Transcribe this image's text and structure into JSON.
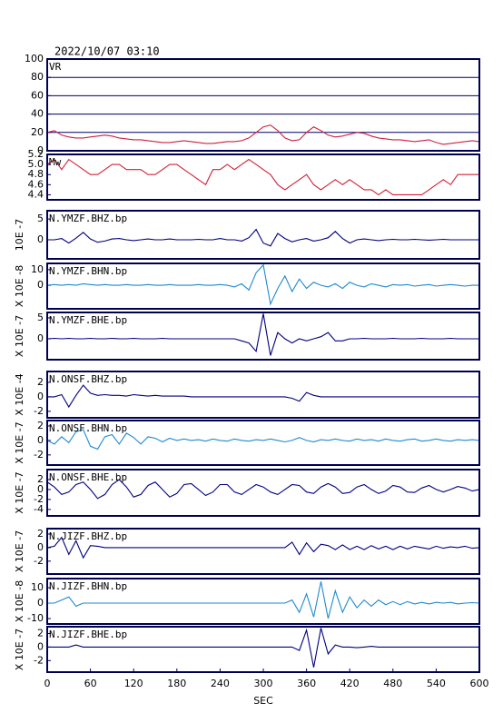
{
  "chart_data": {
    "type": "line",
    "date": "2022/10/07 03:10",
    "xlabel": "SEC",
    "xlim": [
      0,
      600
    ],
    "xticks": [
      0,
      60,
      120,
      180,
      240,
      300,
      360,
      420,
      480,
      540,
      600
    ],
    "x": [
      0,
      10,
      20,
      30,
      40,
      50,
      60,
      70,
      80,
      90,
      100,
      110,
      120,
      130,
      140,
      150,
      160,
      170,
      180,
      190,
      200,
      210,
      220,
      230,
      240,
      250,
      260,
      270,
      280,
      290,
      300,
      310,
      320,
      330,
      340,
      350,
      360,
      370,
      380,
      390,
      400,
      410,
      420,
      430,
      440,
      450,
      460,
      470,
      480,
      490,
      500,
      510,
      520,
      530,
      540,
      550,
      560,
      570,
      580,
      590,
      600
    ],
    "panels": [
      {
        "name": "VR",
        "color": "#d0203a",
        "grid": true,
        "ylim": [
          0,
          100
        ],
        "yticks": [
          0,
          20,
          40,
          60,
          80,
          100
        ],
        "values": [
          20,
          22,
          17,
          15,
          14,
          14,
          15,
          16,
          17,
          16,
          14,
          13,
          12,
          12,
          11,
          10,
          9,
          9,
          10,
          11,
          10,
          9,
          8,
          8,
          9,
          10,
          10,
          11,
          14,
          20,
          26,
          28,
          22,
          14,
          11,
          12,
          20,
          26,
          22,
          17,
          15,
          16,
          18,
          20,
          19,
          16,
          14,
          13,
          12,
          12,
          11,
          10,
          11,
          12,
          9,
          7,
          8,
          9,
          10,
          11,
          10
        ]
      },
      {
        "name": "Mw",
        "color": "#d0203a",
        "ylim": [
          4.3,
          5.2
        ],
        "yticks": [
          4.4,
          4.6,
          4.8,
          {
            "value": 5,
            "label": "5.0"
          },
          5.2
        ],
        "values": [
          5.0,
          5.1,
          4.9,
          5.1,
          5.0,
          4.9,
          4.8,
          4.8,
          4.9,
          5.0,
          5.0,
          4.9,
          4.9,
          4.9,
          4.8,
          4.8,
          4.9,
          5.0,
          5.0,
          4.9,
          4.8,
          4.7,
          4.6,
          4.9,
          4.9,
          5.0,
          4.9,
          5.0,
          5.1,
          5.0,
          4.9,
          4.8,
          4.6,
          4.5,
          4.6,
          4.7,
          4.8,
          4.6,
          4.5,
          4.6,
          4.7,
          4.6,
          4.7,
          4.6,
          4.5,
          4.5,
          4.4,
          4.5,
          4.4,
          4.4,
          4.4,
          4.4,
          4.4,
          4.5,
          4.6,
          4.7,
          4.6,
          4.8,
          4.8,
          4.8,
          4.8
        ]
      },
      {
        "name": "N.YMZF.BHZ.bp",
        "unit": "10E -7",
        "color": "#000080",
        "ylim": [
          -4.6,
          7
        ],
        "yticks": [
          0,
          5
        ],
        "values": [
          0,
          0,
          0.3,
          -0.8,
          0.4,
          1.8,
          0.2,
          -0.6,
          -0.3,
          0.2,
          0.3,
          0,
          -0.2,
          0,
          0.2,
          0,
          0,
          0.2,
          0,
          0,
          0,
          0.1,
          0,
          0,
          0.3,
          0,
          0,
          -0.3,
          0.5,
          2.5,
          -0.8,
          -1.5,
          1.5,
          0.3,
          -0.5,
          0,
          0.3,
          -0.3,
          0,
          0.5,
          2,
          0.3,
          -0.8,
          0,
          0.2,
          0,
          -0.2,
          0,
          0.1,
          0,
          0,
          0.1,
          0,
          -0.1,
          0,
          0.1,
          0,
          0,
          0,
          0,
          0
        ]
      },
      {
        "name": "N.YMZF.BHN.bp",
        "unit": "X 10E -8",
        "color": "#1e8ad0",
        "ylim": [
          -15,
          14
        ],
        "yticks": [
          0,
          10
        ],
        "values": [
          0,
          0.5,
          0,
          0.5,
          0,
          1,
          0.5,
          0,
          0.5,
          0,
          0,
          0.5,
          0,
          0,
          0.5,
          0,
          0,
          0.5,
          0,
          0,
          0,
          0.5,
          0,
          0,
          0.5,
          0,
          -1,
          1,
          -3,
          8,
          13,
          -12,
          -2,
          6,
          -4,
          4,
          -2,
          2,
          0,
          -1,
          1,
          -2,
          2,
          0,
          -1,
          1,
          0,
          -1,
          0.5,
          0,
          0.5,
          -0.5,
          0,
          0.5,
          -0.5,
          0,
          0.5,
          0,
          -0.5,
          0,
          0
        ]
      },
      {
        "name": "N.YMZF.BHE.bp",
        "unit": "X 10E -7",
        "color": "#000080",
        "ylim": [
          -5,
          6.3
        ],
        "yticks": [
          0,
          5
        ],
        "values": [
          0,
          0.1,
          0,
          0.1,
          0,
          0,
          0.1,
          0,
          0,
          0.1,
          0,
          0,
          0.1,
          0,
          0,
          0,
          0.1,
          0,
          0,
          0,
          0,
          0,
          0,
          0,
          0,
          0,
          0,
          -0.5,
          -1,
          -3,
          6,
          -4,
          1.5,
          0,
          -1,
          0,
          -0.5,
          0,
          0.5,
          1.5,
          -0.5,
          -0.5,
          0,
          0,
          0.1,
          0,
          0,
          0,
          0.1,
          0,
          0,
          0,
          0.1,
          0,
          0,
          0,
          0.1,
          0,
          0,
          0,
          0
        ]
      },
      {
        "name": "N.ONSF.BHZ.bp",
        "unit": "X 10E -4",
        "color": "#000080",
        "ylim": [
          -2.9,
          3.5
        ],
        "yticks": [
          -2,
          0,
          2
        ],
        "values": [
          0,
          0,
          0.3,
          -1.4,
          0.2,
          1.6,
          0.5,
          0.2,
          0.3,
          0.2,
          0.2,
          0.1,
          0.3,
          0.2,
          0.1,
          0.2,
          0.1,
          0.1,
          0.1,
          0.1,
          0,
          0,
          0,
          0,
          0,
          0,
          0,
          0,
          0,
          0,
          0,
          0,
          0,
          0,
          -0.2,
          -0.6,
          0.6,
          0.2,
          0,
          0,
          0,
          0,
          0,
          0,
          0,
          0,
          0,
          0,
          0,
          0,
          0,
          0,
          0,
          0,
          0,
          0,
          0,
          0,
          0,
          0,
          0
        ]
      },
      {
        "name": "N.ONSF.BHN.bp",
        "unit": "X 10E -7",
        "color": "#1e8ad0",
        "ylim": [
          -3.4,
          2.75
        ],
        "yticks": [
          -2,
          0,
          2
        ],
        "values": [
          0,
          -0.5,
          0.5,
          -0.3,
          1.2,
          1.5,
          -0.8,
          -1.2,
          0.5,
          0.8,
          -0.5,
          1,
          0.4,
          -0.5,
          0.5,
          0.3,
          -0.2,
          0.3,
          0,
          0.2,
          0,
          0.1,
          -0.1,
          0.2,
          0,
          -0.1,
          0.2,
          0,
          -0.1,
          0.1,
          0,
          0.2,
          0,
          -0.2,
          0,
          0.4,
          0,
          -0.2,
          0.1,
          0,
          0.2,
          0,
          -0.1,
          0.2,
          0,
          0.1,
          -0.1,
          0.2,
          0,
          -0.1,
          0.1,
          0.2,
          -0.1,
          0,
          0.2,
          0,
          -0.1,
          0.1,
          0,
          0.1,
          0
        ]
      },
      {
        "name": "N.ONSF.BHE.bp",
        "unit": "X 10E -7",
        "color": "#000080",
        "ylim": [
          -5.3,
          4
        ],
        "yticks": [
          -4,
          -2,
          0,
          2
        ],
        "values": [
          1.5,
          0.5,
          -1,
          -0.5,
          1,
          1.5,
          0,
          -1.8,
          -1,
          1,
          2,
          0.5,
          -1.5,
          -1,
          0.8,
          1.5,
          0,
          -1.5,
          -0.8,
          1,
          1.2,
          0,
          -1.2,
          -0.5,
          1,
          1,
          -0.5,
          -1,
          0,
          1,
          0.5,
          -0.5,
          -1,
          0,
          1,
          0.8,
          -0.5,
          -0.8,
          0.5,
          1.2,
          0.5,
          -0.8,
          -0.6,
          0.5,
          1,
          0,
          -0.8,
          -0.3,
          0.8,
          0.5,
          -0.5,
          -0.6,
          0.3,
          0.8,
          0,
          -0.5,
          0,
          0.6,
          0.3,
          -0.3,
          0
        ]
      },
      {
        "name": "N.JIZF.BHZ.bp",
        "unit": "X 10E -7",
        "color": "#000080",
        "ylim": [
          -3.9,
          2.8
        ],
        "yticks": [
          -2,
          0,
          2
        ],
        "values": [
          0,
          0.2,
          1.5,
          -1,
          1,
          -1.5,
          0.3,
          0.2,
          0,
          0,
          0,
          0,
          0,
          0,
          0,
          0,
          0,
          0,
          0,
          0,
          0,
          0,
          0,
          0,
          0,
          0,
          0,
          0,
          0,
          0,
          0,
          0,
          0,
          0,
          0.8,
          -1,
          0.7,
          -0.6,
          0.5,
          0.3,
          -0.3,
          0.4,
          -0.3,
          0.2,
          -0.3,
          0.3,
          -0.2,
          0.2,
          -0.3,
          0.2,
          -0.2,
          0.2,
          0,
          -0.2,
          0.2,
          -0.1,
          0.1,
          0,
          0.2,
          -0.1,
          0
        ]
      },
      {
        "name": "N.JIZF.BHN.bp",
        "unit": "X 10E -8",
        "color": "#1e8ad0",
        "ylim": [
          -13.5,
          15.9
        ],
        "yticks": [
          -10,
          0,
          10
        ],
        "values": [
          0,
          0,
          2,
          4,
          -2,
          0,
          0,
          0,
          0,
          0,
          0,
          0,
          0,
          0,
          0,
          0,
          0,
          0,
          0,
          0,
          0,
          0,
          0,
          0,
          0,
          0,
          0,
          0,
          0,
          0,
          0,
          0,
          0,
          0,
          2,
          -6,
          6,
          -9,
          14,
          -10,
          8,
          -6,
          4,
          -3,
          2,
          -2,
          2,
          -1,
          1,
          -1,
          1,
          -0.5,
          0.5,
          -0.5,
          0.5,
          0,
          0.5,
          -0.5,
          0,
          0.3,
          0
        ]
      },
      {
        "name": "N.JIZF.BHE.bp",
        "unit": "X 10E -7",
        "color": "#000080",
        "ylim": [
          -3.7,
          3
        ],
        "yticks": [
          -2,
          0,
          2
        ],
        "values": [
          0,
          0,
          0,
          0,
          0.3,
          0,
          0,
          0,
          0,
          0,
          0,
          0,
          0,
          0,
          0,
          0,
          0,
          0,
          0,
          0,
          0,
          0,
          0,
          0,
          0,
          0,
          0,
          0,
          0,
          0,
          0,
          0,
          0,
          0,
          0,
          -0.5,
          2.5,
          -3,
          2.8,
          -1,
          0.3,
          0,
          0,
          -0.1,
          0,
          0.1,
          0,
          0,
          0,
          0,
          0,
          0,
          0,
          0,
          0,
          0,
          0,
          0,
          0,
          0,
          0
        ]
      }
    ]
  }
}
